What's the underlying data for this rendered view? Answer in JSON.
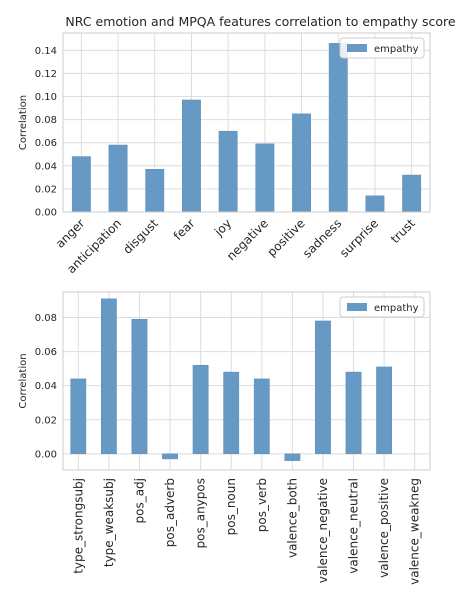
{
  "chart_data": [
    {
      "type": "bar",
      "title": "NRC emotion and MPQA features correlation to empathy score",
      "xlabel": "",
      "ylabel": "Correlation",
      "ylim": [
        0,
        0.155
      ],
      "yticks": [
        0.0,
        0.02,
        0.04,
        0.06,
        0.08,
        0.1,
        0.12,
        0.14
      ],
      "grid": true,
      "legend_position": "top-right",
      "colors": {
        "bar": "#6699c3",
        "bar_edge": "#5a8cb8",
        "grid": "#dddddd",
        "frame": "#cccccc"
      },
      "categories": [
        "anger",
        "anticipation",
        "disgust",
        "fear",
        "joy",
        "negative",
        "positive",
        "sadness",
        "surprise",
        "trust"
      ],
      "series": [
        {
          "name": "empathy",
          "values": [
            0.048,
            0.058,
            0.037,
            0.097,
            0.07,
            0.059,
            0.085,
            0.146,
            0.014,
            0.032
          ]
        }
      ]
    },
    {
      "type": "bar",
      "title": "",
      "xlabel": "",
      "ylabel": "Correlation",
      "ylim": [
        -0.0095,
        0.095
      ],
      "yticks": [
        0.0,
        0.02,
        0.04,
        0.06,
        0.08
      ],
      "grid": true,
      "legend_position": "top-right",
      "colors": {
        "bar": "#6699c3",
        "bar_edge": "#5a8cb8",
        "grid": "#dddddd",
        "frame": "#cccccc"
      },
      "categories": [
        "type_strongsubj",
        "type_weaksubj",
        "pos_adj",
        "pos_adverb",
        "pos_anypos",
        "pos_noun",
        "pos_verb",
        "valence_both",
        "valence_negative",
        "valence_neutral",
        "valence_positive",
        "valence_weakneg"
      ],
      "series": [
        {
          "name": "empathy",
          "values": [
            0.044,
            0.091,
            0.079,
            -0.003,
            0.052,
            0.048,
            0.044,
            -0.004,
            0.078,
            0.048,
            0.051,
            0.0
          ]
        }
      ]
    }
  ]
}
